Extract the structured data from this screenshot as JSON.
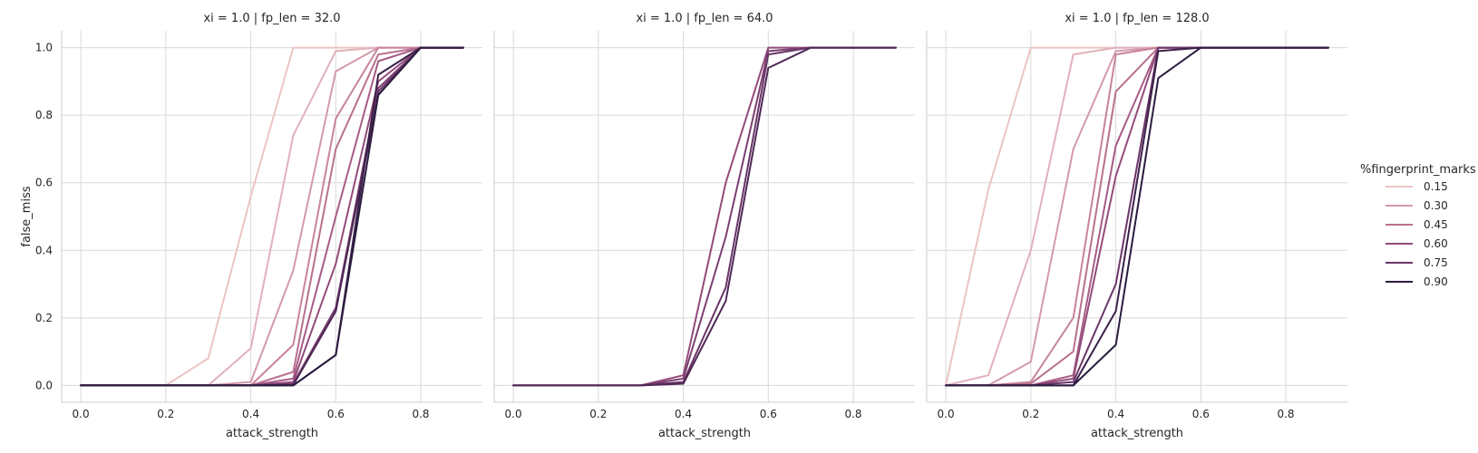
{
  "chart_data": {
    "type": "line",
    "xlabel": "attack_strength",
    "ylabel": "false_miss",
    "xlim": [
      -0.045,
      0.945
    ],
    "ylim": [
      -0.05,
      1.05
    ],
    "xticks": [
      "0.0",
      "0.2",
      "0.4",
      "0.6",
      "0.8"
    ],
    "yticks": [
      "0.0",
      "0.2",
      "0.4",
      "0.6",
      "0.8",
      "1.0"
    ],
    "grid": true,
    "legend": {
      "title": "%fingerprint_marks",
      "placement": "right",
      "entries": [
        {
          "label": "0.15",
          "color": "#ebc4c4"
        },
        {
          "label": "0.30",
          "color": "#d49aaa"
        },
        {
          "label": "0.45",
          "color": "#b8708f"
        },
        {
          "label": "0.60",
          "color": "#934b7b"
        },
        {
          "label": "0.75",
          "color": "#6a3567"
        },
        {
          "label": "0.90",
          "color": "#2b1c3f"
        }
      ]
    },
    "panels": [
      {
        "title": "xi = 1.0 | fp_len = 32.0",
        "show_ylabel": true,
        "series": [
          {
            "color": "#ebc4c4",
            "x": [
              0.0,
              0.1,
              0.2,
              0.3,
              0.4,
              0.5,
              0.6,
              0.7,
              0.8,
              0.9
            ],
            "y": [
              0,
              0,
              0,
              0.08,
              0.56,
              1.0,
              1.0,
              1.0,
              1.0,
              1.0
            ]
          },
          {
            "color": "#e1b1ba",
            "x": [
              0.0,
              0.1,
              0.2,
              0.3,
              0.4,
              0.5,
              0.6,
              0.7,
              0.8,
              0.9
            ],
            "y": [
              0,
              0,
              0,
              0,
              0.11,
              0.74,
              0.99,
              1.0,
              1.0,
              1.0
            ]
          },
          {
            "color": "#d49aaa",
            "x": [
              0.0,
              0.1,
              0.2,
              0.3,
              0.4,
              0.5,
              0.6,
              0.7,
              0.8,
              0.9
            ],
            "y": [
              0,
              0,
              0,
              0,
              0.01,
              0.34,
              0.93,
              1.0,
              1.0,
              1.0
            ]
          },
          {
            "color": "#c7849c",
            "x": [
              0.0,
              0.1,
              0.2,
              0.3,
              0.4,
              0.5,
              0.6,
              0.7,
              0.8,
              0.9
            ],
            "y": [
              0,
              0,
              0,
              0,
              0,
              0.12,
              0.79,
              1.0,
              1.0,
              1.0
            ]
          },
          {
            "color": "#b8708f",
            "x": [
              0.0,
              0.1,
              0.2,
              0.3,
              0.4,
              0.5,
              0.6,
              0.7,
              0.8,
              0.9
            ],
            "y": [
              0,
              0,
              0,
              0,
              0,
              0.04,
              0.7,
              0.98,
              1.0,
              1.0
            ]
          },
          {
            "color": "#a65c85",
            "x": [
              0.0,
              0.1,
              0.2,
              0.3,
              0.4,
              0.5,
              0.6,
              0.7,
              0.8,
              0.9
            ],
            "y": [
              0,
              0,
              0,
              0,
              0,
              0.02,
              0.5,
              0.96,
              1.0,
              1.0
            ]
          },
          {
            "color": "#934b7b",
            "x": [
              0.0,
              0.1,
              0.2,
              0.3,
              0.4,
              0.5,
              0.6,
              0.7,
              0.8,
              0.9
            ],
            "y": [
              0,
              0,
              0,
              0,
              0,
              0.01,
              0.36,
              0.9,
              1.0,
              1.0
            ]
          },
          {
            "color": "#7c4071",
            "x": [
              0.0,
              0.1,
              0.2,
              0.3,
              0.4,
              0.5,
              0.6,
              0.7,
              0.8,
              0.9
            ],
            "y": [
              0,
              0,
              0,
              0,
              0,
              0.005,
              0.23,
              0.88,
              1.0,
              1.0
            ]
          },
          {
            "color": "#6a3567",
            "x": [
              0.0,
              0.1,
              0.2,
              0.3,
              0.4,
              0.5,
              0.6,
              0.7,
              0.8,
              0.9
            ],
            "y": [
              0,
              0,
              0,
              0,
              0,
              0.003,
              0.22,
              0.87,
              1.0,
              1.0
            ]
          },
          {
            "color": "#4f2856",
            "x": [
              0.0,
              0.1,
              0.2,
              0.3,
              0.4,
              0.5,
              0.6,
              0.7,
              0.8,
              0.9
            ],
            "y": [
              0,
              0,
              0,
              0,
              0,
              0.001,
              0.22,
              0.86,
              1.0,
              1.0
            ]
          },
          {
            "color": "#3b2149",
            "x": [
              0.0,
              0.1,
              0.2,
              0.3,
              0.4,
              0.5,
              0.6,
              0.7,
              0.8,
              0.9
            ],
            "y": [
              0,
              0,
              0,
              0,
              0,
              0,
              0.09,
              0.92,
              1.0,
              1.0
            ]
          },
          {
            "color": "#2b1c3f",
            "x": [
              0.0,
              0.1,
              0.2,
              0.3,
              0.4,
              0.5,
              0.6,
              0.7,
              0.8,
              0.9
            ],
            "y": [
              0,
              0,
              0,
              0,
              0,
              0,
              0.09,
              0.86,
              1.0,
              1.0
            ]
          }
        ]
      },
      {
        "title": "xi = 1.0 | fp_len = 64.0",
        "show_ylabel": false,
        "series": [
          {
            "color": "#934b7b",
            "x": [
              0.0,
              0.1,
              0.2,
              0.3,
              0.4,
              0.5,
              0.6,
              0.7,
              0.8,
              0.9
            ],
            "y": [
              0,
              0,
              0,
              0,
              0.03,
              0.6,
              1.0,
              1.0,
              1.0,
              1.0
            ]
          },
          {
            "color": "#7c4071",
            "x": [
              0.0,
              0.1,
              0.2,
              0.3,
              0.4,
              0.5,
              0.6,
              0.7,
              0.8,
              0.9
            ],
            "y": [
              0,
              0,
              0,
              0,
              0.02,
              0.44,
              0.99,
              1.0,
              1.0,
              1.0
            ]
          },
          {
            "color": "#6a3567",
            "x": [
              0.0,
              0.1,
              0.2,
              0.3,
              0.4,
              0.5,
              0.6,
              0.7,
              0.8,
              0.9
            ],
            "y": [
              0,
              0,
              0,
              0,
              0.01,
              0.29,
              0.98,
              1.0,
              1.0,
              1.0
            ]
          },
          {
            "color": "#4f2856",
            "x": [
              0.0,
              0.1,
              0.2,
              0.3,
              0.4,
              0.5,
              0.6,
              0.7,
              0.8,
              0.9
            ],
            "y": [
              0,
              0,
              0,
              0,
              0.005,
              0.25,
              0.94,
              1.0,
              1.0,
              1.0
            ]
          }
        ]
      },
      {
        "title": "xi = 1.0 | fp_len = 128.0",
        "show_ylabel": false,
        "series": [
          {
            "color": "#ebc4c4",
            "x": [
              0.0,
              0.1,
              0.2,
              0.3,
              0.4,
              0.5,
              0.6,
              0.7,
              0.8,
              0.9
            ],
            "y": [
              0,
              0.58,
              1.0,
              1.0,
              1.0,
              1.0,
              1.0,
              1.0,
              1.0,
              1.0
            ]
          },
          {
            "color": "#e1b1ba",
            "x": [
              0.0,
              0.1,
              0.2,
              0.3,
              0.4,
              0.5,
              0.6,
              0.7,
              0.8,
              0.9
            ],
            "y": [
              0,
              0.03,
              0.4,
              0.98,
              1.0,
              1.0,
              1.0,
              1.0,
              1.0,
              1.0
            ]
          },
          {
            "color": "#d49aaa",
            "x": [
              0.0,
              0.1,
              0.2,
              0.3,
              0.4,
              0.5,
              0.6,
              0.7,
              0.8,
              0.9
            ],
            "y": [
              0,
              0,
              0.07,
              0.7,
              0.99,
              1.0,
              1.0,
              1.0,
              1.0,
              1.0
            ]
          },
          {
            "color": "#c7849c",
            "x": [
              0.0,
              0.1,
              0.2,
              0.3,
              0.4,
              0.5,
              0.6,
              0.7,
              0.8,
              0.9
            ],
            "y": [
              0,
              0,
              0.01,
              0.2,
              0.98,
              1.0,
              1.0,
              1.0,
              1.0,
              1.0
            ]
          },
          {
            "color": "#b8708f",
            "x": [
              0.0,
              0.1,
              0.2,
              0.3,
              0.4,
              0.5,
              0.6,
              0.7,
              0.8,
              0.9
            ],
            "y": [
              0,
              0,
              0.005,
              0.1,
              0.87,
              1.0,
              1.0,
              1.0,
              1.0,
              1.0
            ]
          },
          {
            "color": "#a65c85",
            "x": [
              0.0,
              0.1,
              0.2,
              0.3,
              0.4,
              0.5,
              0.6,
              0.7,
              0.8,
              0.9
            ],
            "y": [
              0,
              0,
              0,
              0.03,
              0.71,
              1.0,
              1.0,
              1.0,
              1.0,
              1.0
            ]
          },
          {
            "color": "#934b7b",
            "x": [
              0.0,
              0.1,
              0.2,
              0.3,
              0.4,
              0.5,
              0.6,
              0.7,
              0.8,
              0.9
            ],
            "y": [
              0,
              0,
              0,
              0.02,
              0.62,
              1.0,
              1.0,
              1.0,
              1.0,
              1.0
            ]
          },
          {
            "color": "#6a3567",
            "x": [
              0.0,
              0.1,
              0.2,
              0.3,
              0.4,
              0.5,
              0.6,
              0.7,
              0.8,
              0.9
            ],
            "y": [
              0,
              0,
              0,
              0.01,
              0.3,
              1.0,
              1.0,
              1.0,
              1.0,
              1.0
            ]
          },
          {
            "color": "#3b2149",
            "x": [
              0.0,
              0.1,
              0.2,
              0.3,
              0.4,
              0.5,
              0.6,
              0.7,
              0.8,
              0.9
            ],
            "y": [
              0,
              0,
              0,
              0,
              0.22,
              0.99,
              1.0,
              1.0,
              1.0,
              1.0
            ]
          },
          {
            "color": "#2b1c3f",
            "x": [
              0.0,
              0.1,
              0.2,
              0.3,
              0.4,
              0.5,
              0.6,
              0.7,
              0.8,
              0.9
            ],
            "y": [
              0,
              0,
              0,
              0,
              0.12,
              0.91,
              1.0,
              1.0,
              1.0,
              1.0
            ]
          }
        ]
      }
    ]
  }
}
